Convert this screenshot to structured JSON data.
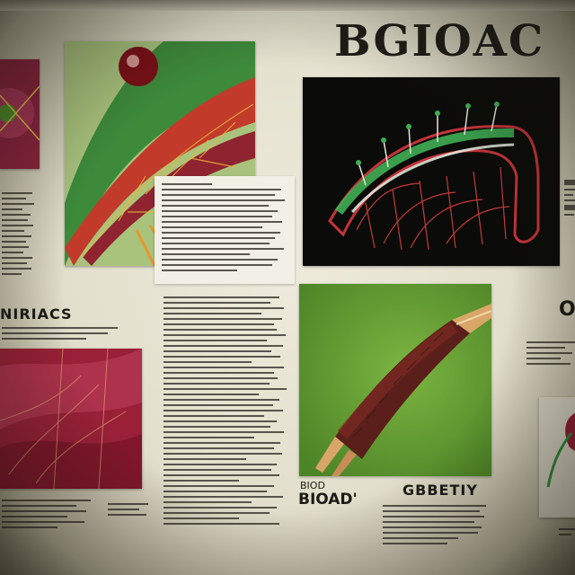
{
  "poster": {
    "title": "BGIOAC",
    "captions": {
      "left_heading": "NIRIACS",
      "center_left": "BIOAD'",
      "center_small": "BIOD",
      "center_right": "GBBETIY",
      "right_partial": "O"
    }
  },
  "colors": {
    "board": "#e8e5d4",
    "crimson": "#9c1c32",
    "green_bg": "#5e9a2f",
    "dark_bg": "#0d0d0b",
    "accent_green": "#2f9a46"
  },
  "icons": [
    "leaf-vein-illustration",
    "organism-skeleton-illustration",
    "fibrous-stem-illustration",
    "red-tissue-illustration",
    "partial-plant-illustration"
  ]
}
